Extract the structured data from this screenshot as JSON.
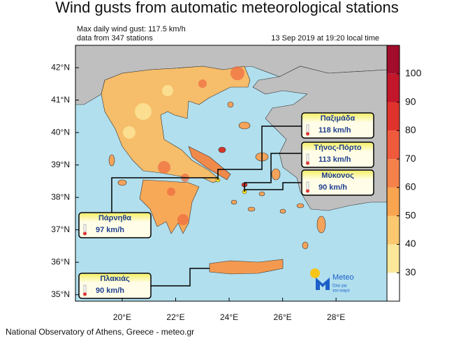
{
  "header": {
    "title": "Wind gusts from automatic meteorological stations",
    "subtitle_lines": [
      "Max daily wind gust: 117.5 km/h",
      "data from 347 stations"
    ],
    "timestamp": "13 Sep 2019 at 19:20 local time"
  },
  "map": {
    "lon_ticks": [
      {
        "value": 20,
        "label": "20°E"
      },
      {
        "value": 22,
        "label": "22°E"
      },
      {
        "value": 24,
        "label": "24°E"
      },
      {
        "value": 26,
        "label": "26°E"
      },
      {
        "value": 28,
        "label": "28°E"
      }
    ],
    "lat_ticks": [
      {
        "value": 35,
        "label": "35°N"
      },
      {
        "value": 36,
        "label": "36°N"
      },
      {
        "value": 37,
        "label": "37°N"
      },
      {
        "value": 38,
        "label": "38°N"
      },
      {
        "value": 39,
        "label": "39°N"
      },
      {
        "value": 40,
        "label": "40°N"
      },
      {
        "value": 41,
        "label": "41°N"
      },
      {
        "value": 42,
        "label": "42°N"
      }
    ],
    "lonlim": [
      18.25,
      29.93
    ],
    "latlim": [
      34.8,
      42.69
    ]
  },
  "colorbar": {
    "lim": [
      20,
      110
    ],
    "ticks": [
      30,
      40,
      50,
      60,
      70,
      80,
      90,
      100
    ],
    "colors": [
      "#ffffff",
      "#fde79a",
      "#fbc86f",
      "#f9a44e",
      "#f5814a",
      "#ef5a3c",
      "#e0322c",
      "#c2162a",
      "#a10d2a"
    ]
  },
  "stations": [
    {
      "name": "Παξιμάδα",
      "gust": "118 km/h"
    },
    {
      "name": "Τήνος-Πόρτο",
      "gust": "113 km/h"
    },
    {
      "name": "Μύκονος",
      "gust": "90 km/h"
    },
    {
      "name": "Πάρνηθα",
      "gust": "97 km/h"
    },
    {
      "name": "Πλακιάς",
      "gust": "90 km/h"
    }
  ],
  "logo": {
    "name": "Meteo",
    "tagline_lines": [
      "Όλα για",
      "τον καιρό"
    ]
  },
  "footer": "National Observatory of Athens, Greece - meteo.gr"
}
